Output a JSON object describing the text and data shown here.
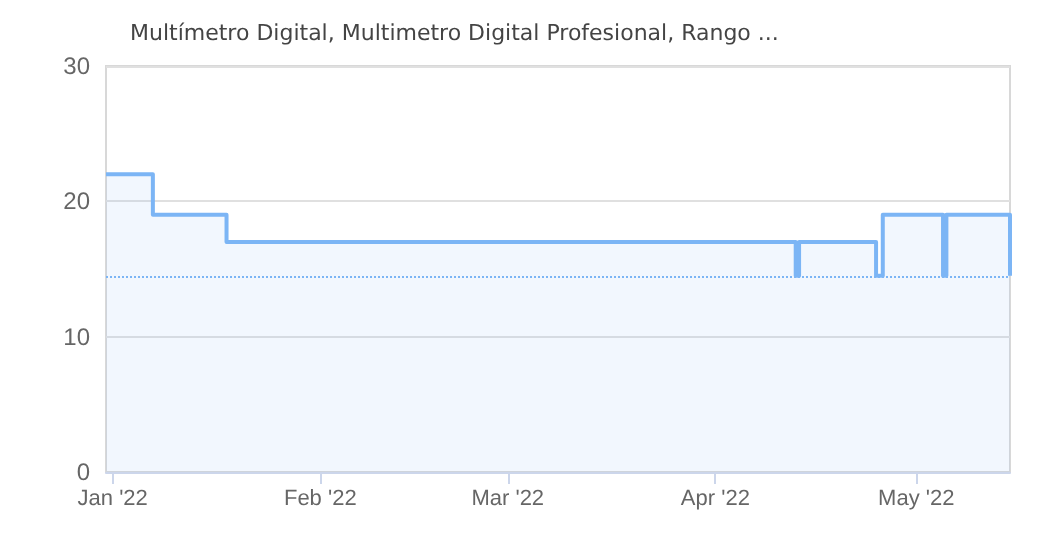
{
  "chart_data": {
    "type": "area",
    "title": "Multímetro Digital, Multimetro Digital Profesional, Rango ...",
    "x": [
      "2021-12-31",
      "2022-01-07",
      "2022-01-07",
      "2022-01-18",
      "2022-01-18",
      "2022-04-13",
      "2022-04-13",
      "2022-04-13T12:00",
      "2022-04-13T12:00",
      "2022-04-25",
      "2022-04-25",
      "2022-04-26",
      "2022-04-26",
      "2022-05-05",
      "2022-05-05",
      "2022-05-05T12:00",
      "2022-05-05T12:00",
      "2022-05-15",
      "2022-05-15"
    ],
    "series": [
      {
        "color": "#7cb5f5",
        "values": [
          22,
          22,
          19,
          19,
          17,
          17,
          14.5,
          14.5,
          17,
          17,
          14.5,
          14.5,
          19,
          19,
          14.5,
          14.5,
          19,
          19,
          14.5
        ]
      }
    ],
    "xlim": [
      "2021-12-31",
      "2022-05-15"
    ],
    "xticks": [
      {
        "value": "2022-01-01",
        "label": "Jan '22"
      },
      {
        "value": "2022-02-01",
        "label": "Feb '22"
      },
      {
        "value": "2022-03-01",
        "label": "Mar '22"
      },
      {
        "value": "2022-04-01",
        "label": "Apr '22"
      },
      {
        "value": "2022-05-01",
        "label": "May '22"
      }
    ],
    "ylim": [
      0,
      30
    ],
    "yticks": [
      0,
      10,
      20,
      30
    ],
    "ref_lines": [
      {
        "axis": "y",
        "value": 14.5,
        "color": "#7cb5f5",
        "line_style": "dotted"
      }
    ],
    "grid": "y",
    "marker": "none"
  }
}
